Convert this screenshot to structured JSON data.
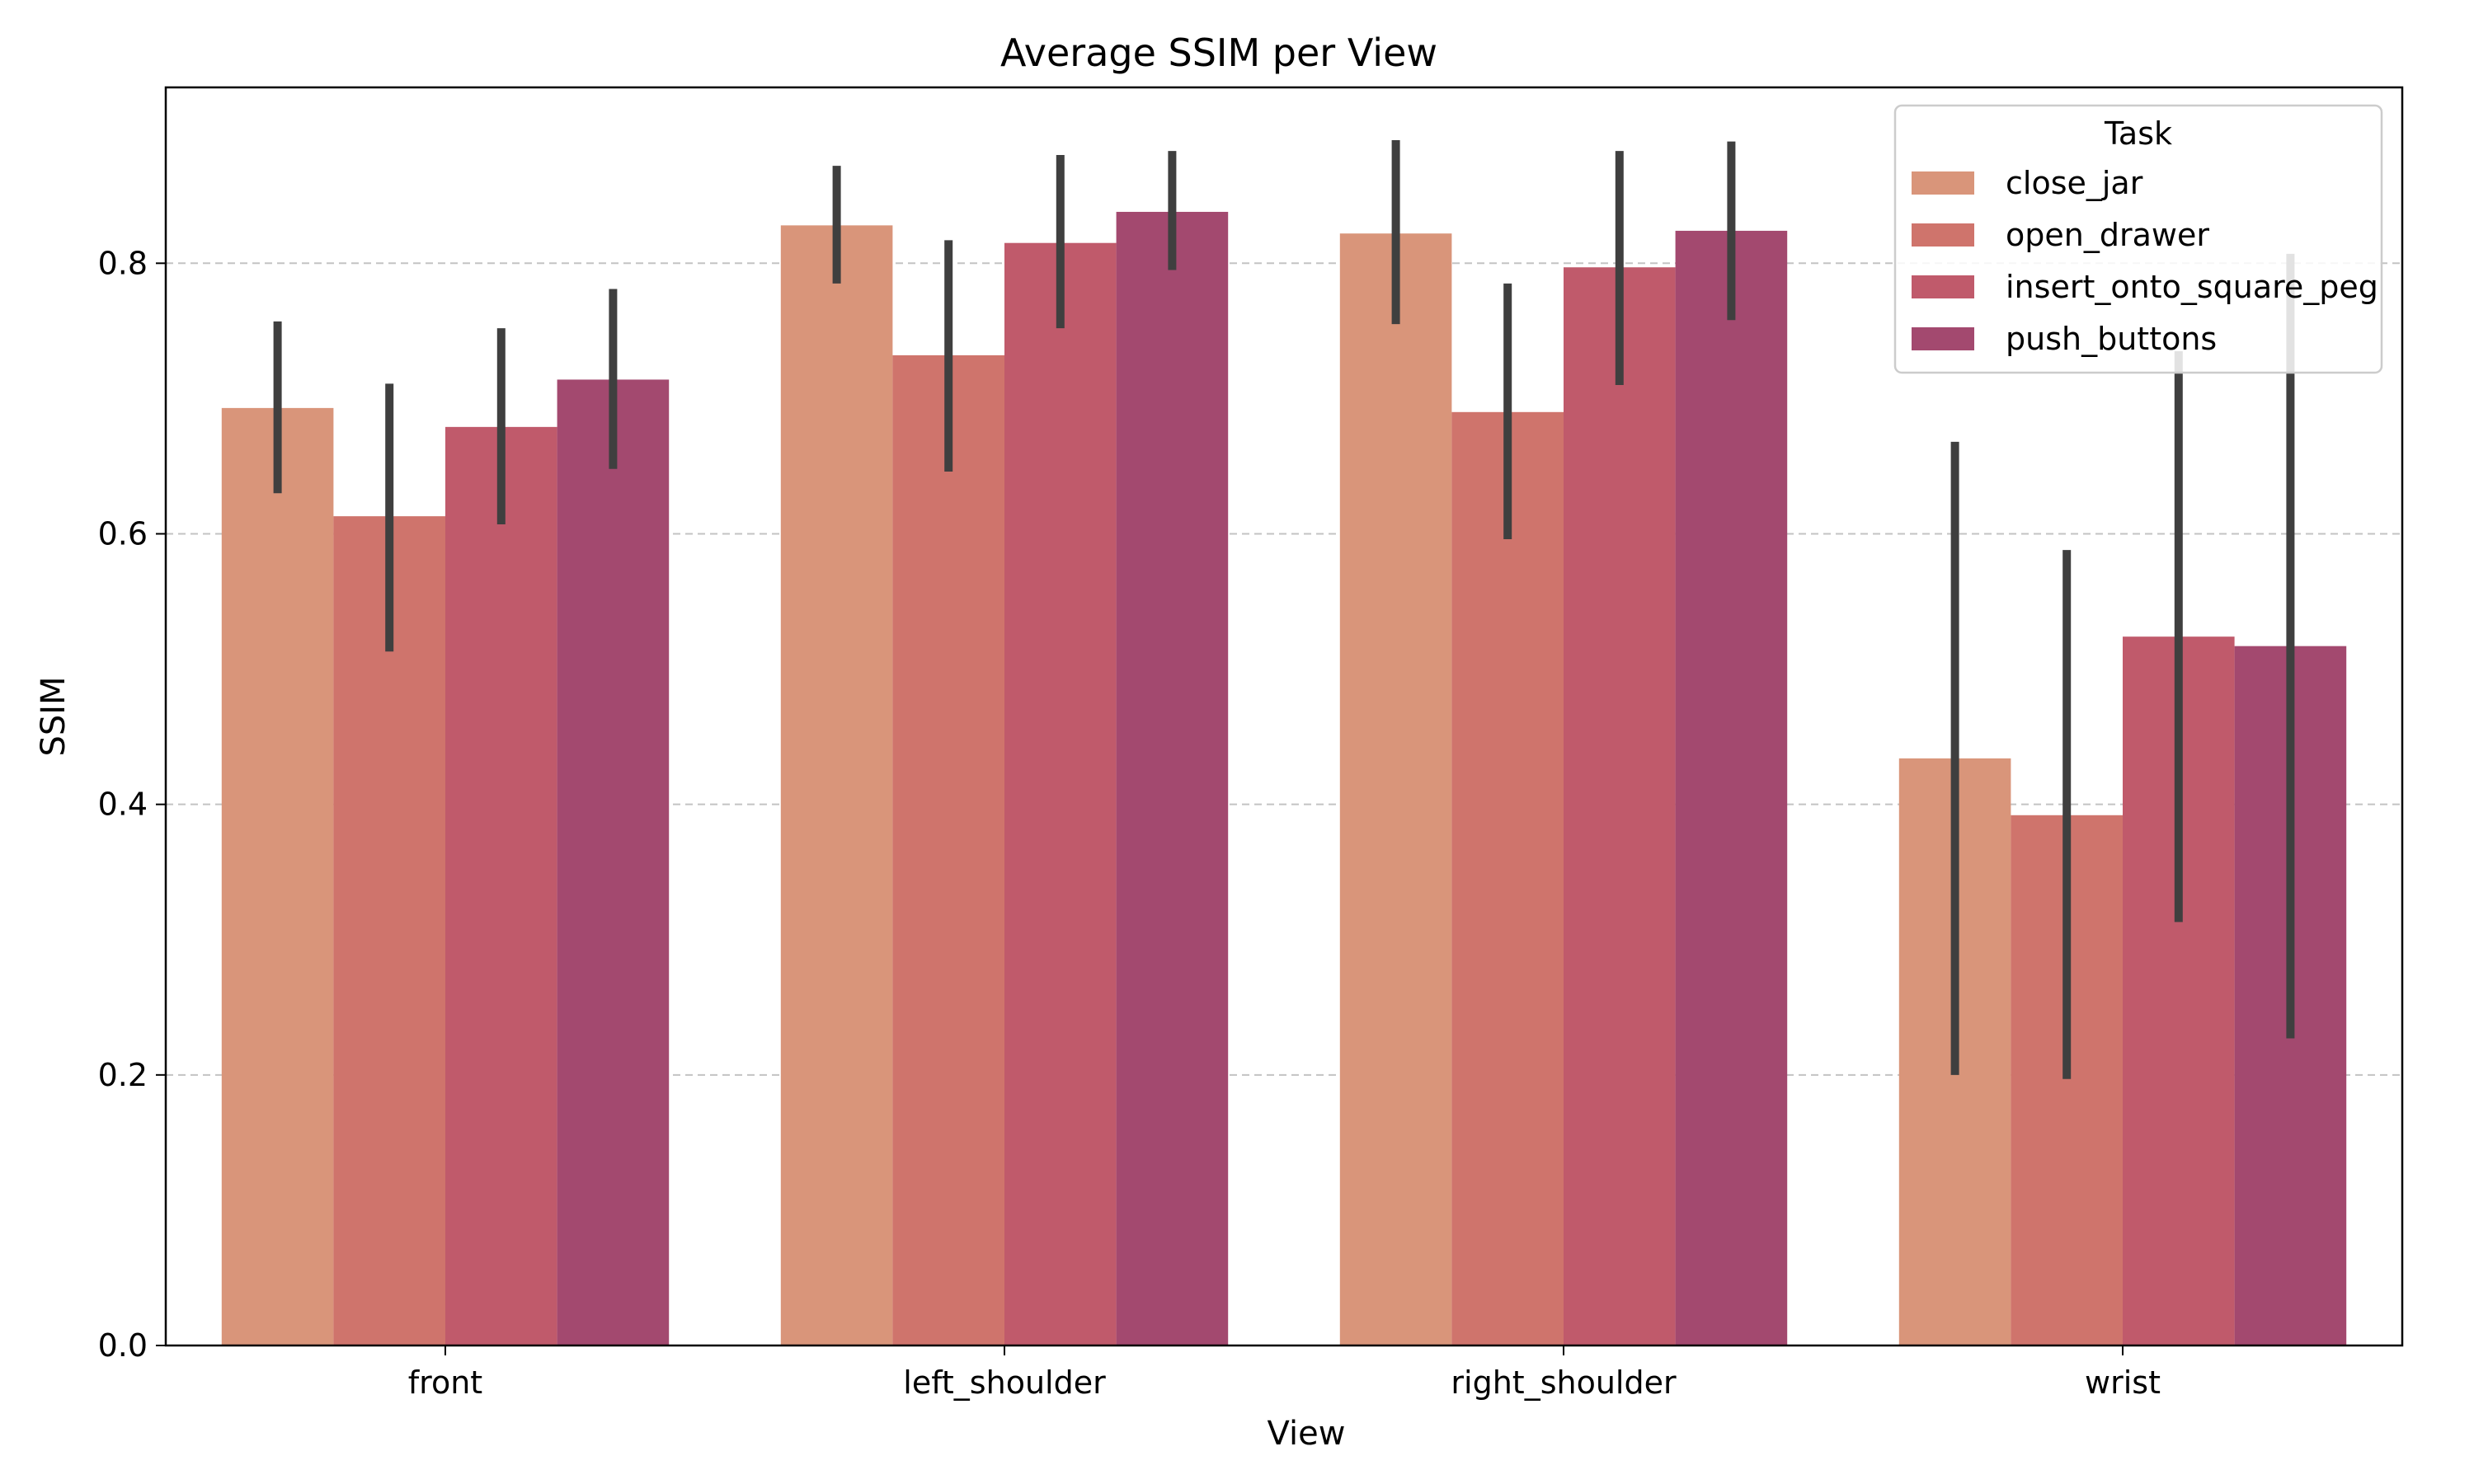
{
  "chart_data": {
    "type": "bar",
    "title": "Average SSIM per View",
    "xlabel": "View",
    "ylabel": "SSIM",
    "ylim": [
      0,
      0.93
    ],
    "yticks": [
      "0.0",
      "0.2",
      "0.4",
      "0.6",
      "0.8"
    ],
    "ytick_values": [
      0,
      0.2,
      0.4,
      0.6,
      0.8
    ],
    "grid": "y-dashed",
    "categories": [
      "front",
      "left_shoulder",
      "right_shoulder",
      "wrist"
    ],
    "legend": {
      "title": "Task",
      "placement": "top-right"
    },
    "series": [
      {
        "name": "close_jar",
        "color": "#d9957a",
        "values": [
          0.693,
          0.828,
          0.822,
          0.434
        ],
        "error_low": [
          0.63,
          0.785,
          0.755,
          0.2
        ],
        "error_high": [
          0.757,
          0.872,
          0.891,
          0.668
        ]
      },
      {
        "name": "open_drawer",
        "color": "#cf746c",
        "values": [
          0.613,
          0.732,
          0.69,
          0.392
        ],
        "error_low": [
          0.513,
          0.646,
          0.596,
          0.197
        ],
        "error_high": [
          0.711,
          0.817,
          0.785,
          0.588
        ]
      },
      {
        "name": "insert_onto_square_peg",
        "color": "#c05a6b",
        "values": [
          0.679,
          0.815,
          0.797,
          0.524
        ],
        "error_low": [
          0.607,
          0.752,
          0.71,
          0.313
        ],
        "error_high": [
          0.752,
          0.88,
          0.883,
          0.735
        ]
      },
      {
        "name": "push_buttons",
        "color": "#a3496f",
        "values": [
          0.714,
          0.838,
          0.824,
          0.517
        ],
        "error_low": [
          0.648,
          0.795,
          0.758,
          0.227
        ],
        "error_high": [
          0.781,
          0.883,
          0.89,
          0.807
        ]
      }
    ]
  }
}
